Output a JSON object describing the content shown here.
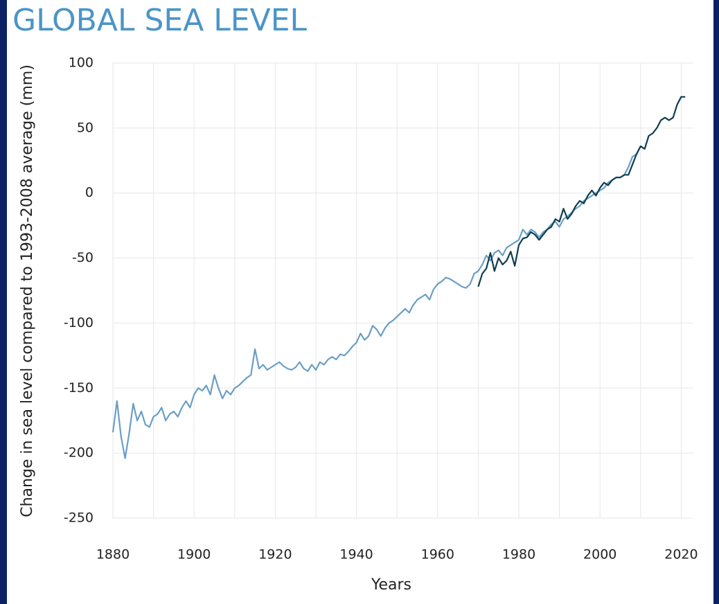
{
  "chart_data": {
    "type": "line",
    "title": "GLOBAL SEA LEVEL",
    "x_label": "Years",
    "y_label": "Change in sea level compared to 1993-2008 average (mm)",
    "xlim": [
      1880,
      2023
    ],
    "xticks": [
      1880,
      1900,
      1920,
      1940,
      1960,
      1980,
      2000,
      2020
    ],
    "xgrid_minor": [
      1890,
      1910,
      1930,
      1950,
      1970,
      1990,
      2010
    ],
    "ylim": [
      -250,
      100
    ],
    "yticks": [
      -250,
      -200,
      -150,
      -100,
      -50,
      0,
      50,
      100
    ],
    "grid": true,
    "series": [
      {
        "color": "#6a9ec4",
        "x": [
          1880,
          1881,
          1882,
          1883,
          1884,
          1885,
          1886,
          1887,
          1888,
          1889,
          1890,
          1891,
          1892,
          1893,
          1894,
          1895,
          1896,
          1897,
          1898,
          1899,
          1900,
          1901,
          1902,
          1903,
          1904,
          1905,
          1906,
          1907,
          1908,
          1909,
          1910,
          1911,
          1912,
          1913,
          1914,
          1915,
          1916,
          1917,
          1918,
          1919,
          1920,
          1921,
          1922,
          1923,
          1924,
          1925,
          1926,
          1927,
          1928,
          1929,
          1930,
          1931,
          1932,
          1933,
          1934,
          1935,
          1936,
          1937,
          1938,
          1939,
          1940,
          1941,
          1942,
          1943,
          1944,
          1945,
          1946,
          1947,
          1948,
          1949,
          1950,
          1951,
          1952,
          1953,
          1954,
          1955,
          1956,
          1957,
          1958,
          1959,
          1960,
          1961,
          1962,
          1963,
          1964,
          1965,
          1966,
          1967,
          1968,
          1969,
          1970,
          1971,
          1972,
          1973,
          1974,
          1975,
          1976,
          1977,
          1978,
          1979,
          1980,
          1981,
          1982,
          1983,
          1984,
          1985,
          1986,
          1987,
          1988,
          1989,
          1990,
          1991,
          1992,
          1993,
          1994,
          1995,
          1996,
          1997,
          1998,
          1999,
          2000,
          2001,
          2002,
          2003,
          2004,
          2005,
          2006,
          2007,
          2008,
          2009,
          2010,
          2011
        ],
        "values": [
          -184,
          -160,
          -187,
          -204,
          -185,
          -162,
          -175,
          -168,
          -178,
          -180,
          -172,
          -170,
          -165,
          -175,
          -170,
          -168,
          -172,
          -165,
          -160,
          -165,
          -155,
          -150,
          -152,
          -148,
          -155,
          -140,
          -150,
          -158,
          -152,
          -155,
          -150,
          -148,
          -145,
          -142,
          -140,
          -120,
          -135,
          -132,
          -136,
          -134,
          -132,
          -130,
          -133,
          -135,
          -136,
          -134,
          -130,
          -135,
          -137,
          -132,
          -136,
          -130,
          -132,
          -128,
          -126,
          -128,
          -124,
          -125,
          -122,
          -118,
          -115,
          -108,
          -113,
          -110,
          -102,
          -105,
          -110,
          -104,
          -100,
          -98,
          -95,
          -92,
          -89,
          -92,
          -86,
          -82,
          -80,
          -78,
          -82,
          -74,
          -70,
          -68,
          -65,
          -66,
          -68,
          -70,
          -72,
          -73,
          -70,
          -62,
          -60,
          -55,
          -48,
          -52,
          -46,
          -44,
          -48,
          -42,
          -40,
          -38,
          -36,
          -28,
          -32,
          -28,
          -30,
          -34,
          -30,
          -28,
          -24,
          -22,
          -26,
          -20,
          -18,
          -15,
          -12,
          -10,
          -6,
          -4,
          -2,
          0,
          2,
          4,
          8,
          10,
          12,
          12,
          14,
          20,
          28,
          30,
          36,
          34
        ]
      },
      {
        "color": "#0d3d4f",
        "x": [
          1970,
          1971,
          1972,
          1973,
          1974,
          1975,
          1976,
          1977,
          1978,
          1979,
          1980,
          1981,
          1982,
          1983,
          1984,
          1985,
          1986,
          1987,
          1988,
          1989,
          1990,
          1991,
          1992,
          1993,
          1994,
          1995,
          1996,
          1997,
          1998,
          1999,
          2000,
          2001,
          2002,
          2003,
          2004,
          2005,
          2006,
          2007,
          2008,
          2009,
          2010,
          2011,
          2012,
          2013,
          2014,
          2015,
          2016,
          2017,
          2018,
          2019,
          2020,
          2021
        ],
        "values": [
          -72,
          -62,
          -58,
          -46,
          -60,
          -50,
          -55,
          -52,
          -45,
          -56,
          -40,
          -35,
          -34,
          -30,
          -32,
          -36,
          -32,
          -28,
          -26,
          -20,
          -22,
          -12,
          -20,
          -16,
          -10,
          -6,
          -8,
          -2,
          2,
          -2,
          4,
          8,
          6,
          10,
          12,
          12,
          14,
          14,
          22,
          30,
          36,
          34,
          44,
          46,
          50,
          56,
          58,
          56,
          58,
          68,
          74,
          74
        ]
      }
    ]
  }
}
